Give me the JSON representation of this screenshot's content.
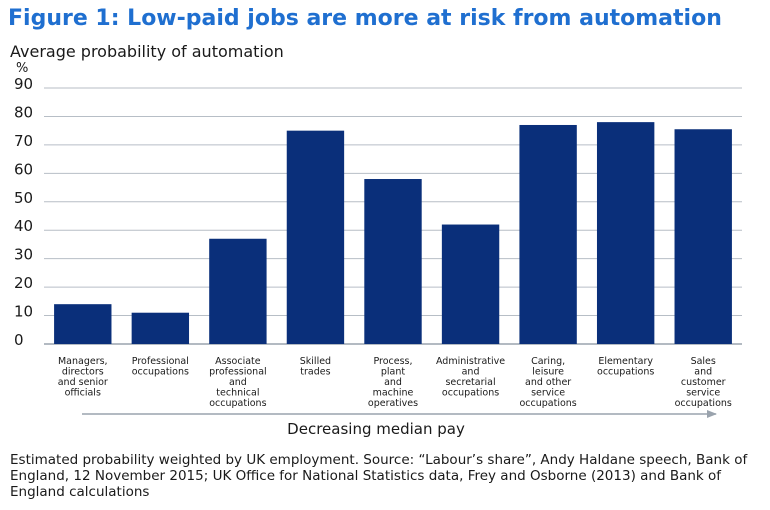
{
  "figure": {
    "title": "Figure 1: Low-paid jobs are more at risk from automation",
    "subtitle": "Average probability of automation",
    "unit": "%",
    "source": "Estimated probability weighted by UK employment. Source: “Labour’s share”, Andy Haldane speech, Bank of England, 12 November 2015; UK Office for National Statistics data, Frey and Osborne (2013) and Bank of England calculations"
  },
  "chart_data": {
    "type": "bar",
    "title": "Figure 1: Low-paid jobs are more at risk from automation",
    "ylabel": "Average probability of automation",
    "yunit": "%",
    "xlabel": "Decreasing median pay",
    "ylim": [
      0,
      90
    ],
    "yticks": [
      0,
      10,
      20,
      30,
      40,
      50,
      60,
      70,
      80,
      90
    ],
    "grid": true,
    "bar_color": "#0a2f7a",
    "categories": [
      "Managers, directors and senior officials",
      "Professional occupations",
      "Associate professional and technical occupations",
      "Skilled trades",
      "Process, plant and machine operatives",
      "Administrative and secretarial occupations",
      "Caring, leisure and other service occupations",
      "Elementary occupations",
      "Sales and customer service occupations"
    ],
    "category_lines": [
      [
        "Managers,",
        "directors",
        "and senior",
        "officials"
      ],
      [
        "Professional",
        "occupations"
      ],
      [
        "Associate",
        "professional",
        "and",
        "technical",
        "occupations"
      ],
      [
        "Skilled",
        "trades"
      ],
      [
        "Process,",
        "plant",
        "and",
        "machine",
        "operatives"
      ],
      [
        "Administrative",
        "and",
        "secretarial",
        "occupations"
      ],
      [
        "Caring,",
        "leisure",
        "and other",
        "service",
        "occupations"
      ],
      [
        "Elementary",
        "occupations"
      ],
      [
        "Sales",
        "and",
        "customer",
        "service",
        "occupations"
      ]
    ],
    "values": [
      14,
      11,
      37,
      75,
      58,
      42,
      77,
      78,
      75.5
    ]
  }
}
